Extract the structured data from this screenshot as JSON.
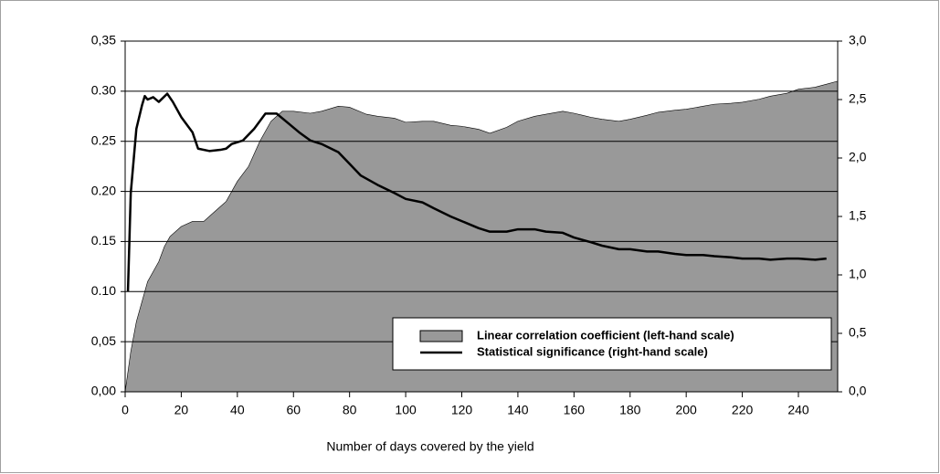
{
  "chart_data": {
    "type": "area-line",
    "x_label": "Number of days covered by the yield",
    "xlim": [
      0,
      254
    ],
    "xticks": [
      0,
      20,
      40,
      60,
      80,
      100,
      120,
      140,
      160,
      180,
      200,
      220,
      240
    ],
    "ylim": [
      0,
      0.35
    ],
    "yticks": [
      {
        "value": 0,
        "label": "0,00"
      },
      {
        "value": 0.05,
        "label": "0,05"
      },
      {
        "value": 0.1,
        "label": "0.10"
      },
      {
        "value": 0.15,
        "label": "0.15"
      },
      {
        "value": 0.2,
        "label": "0.20"
      },
      {
        "value": 0.25,
        "label": "0.25"
      },
      {
        "value": 0.3,
        "label": "0.30"
      },
      {
        "value": 0.35,
        "label": "0,35"
      }
    ],
    "y2lim": [
      0,
      3.0
    ],
    "y2ticks": [
      {
        "value": 0,
        "label": "0,0"
      },
      {
        "value": 0.5,
        "label": "0,5"
      },
      {
        "value": 1,
        "label": "1,0"
      },
      {
        "value": 1.5,
        "label": "1,5"
      },
      {
        "value": 2,
        "label": "2,0"
      },
      {
        "value": 2.5,
        "label": "2,5"
      },
      {
        "value": 3,
        "label": "3,0"
      }
    ],
    "grid": true,
    "legend": "lower right",
    "series": [
      {
        "name": "Linear correlation coefficient (left-hand scale)",
        "kind": "area",
        "color": "#999999",
        "x": [
          0,
          2,
          4,
          6,
          8,
          10,
          12,
          14,
          16,
          20,
          24,
          28,
          32,
          36,
          40,
          44,
          48,
          52,
          56,
          60,
          66,
          70,
          76,
          80,
          86,
          90,
          96,
          100,
          106,
          110,
          116,
          120,
          126,
          130,
          136,
          140,
          146,
          150,
          156,
          160,
          166,
          170,
          176,
          180,
          186,
          190,
          196,
          200,
          206,
          210,
          216,
          220,
          226,
          230,
          236,
          240,
          246,
          250,
          254
        ],
        "values": [
          0,
          0.04,
          0.07,
          0.09,
          0.11,
          0.12,
          0.13,
          0.145,
          0.155,
          0.165,
          0.17,
          0.17,
          0.18,
          0.19,
          0.21,
          0.225,
          0.25,
          0.27,
          0.28,
          0.28,
          0.278,
          0.28,
          0.285,
          0.284,
          0.277,
          0.275,
          0.273,
          0.269,
          0.27,
          0.27,
          0.266,
          0.265,
          0.262,
          0.258,
          0.264,
          0.27,
          0.275,
          0.277,
          0.28,
          0.278,
          0.274,
          0.272,
          0.27,
          0.272,
          0.276,
          0.279,
          0.281,
          0.282,
          0.285,
          0.287,
          0.288,
          0.289,
          0.292,
          0.295,
          0.298,
          0.302,
          0.304,
          0.307,
          0.31
        ]
      },
      {
        "name": "Statistical significance (right-hand scale)",
        "kind": "line",
        "axis": "y2",
        "color": "#000000",
        "x": [
          1,
          2,
          4,
          6,
          7,
          8,
          10,
          12,
          15,
          17,
          20,
          24,
          26,
          30,
          34,
          36,
          38,
          42,
          46,
          50,
          54,
          58,
          62,
          66,
          70,
          76,
          80,
          84,
          90,
          96,
          100,
          106,
          110,
          116,
          120,
          126,
          130,
          136,
          140,
          146,
          150,
          156,
          160,
          166,
          170,
          176,
          180,
          186,
          190,
          196,
          200,
          206,
          210,
          216,
          220,
          226,
          230,
          236,
          240,
          246,
          250
        ],
        "values": [
          0.86,
          1.7,
          2.25,
          2.45,
          2.53,
          2.5,
          2.52,
          2.48,
          2.55,
          2.48,
          2.35,
          2.22,
          2.08,
          2.06,
          2.07,
          2.08,
          2.12,
          2.15,
          2.25,
          2.38,
          2.38,
          2.3,
          2.22,
          2.15,
          2.12,
          2.05,
          1.95,
          1.85,
          1.77,
          1.7,
          1.65,
          1.62,
          1.57,
          1.5,
          1.46,
          1.4,
          1.37,
          1.37,
          1.39,
          1.39,
          1.37,
          1.36,
          1.32,
          1.28,
          1.25,
          1.22,
          1.22,
          1.2,
          1.2,
          1.18,
          1.17,
          1.17,
          1.16,
          1.15,
          1.14,
          1.14,
          1.13,
          1.14,
          1.14,
          1.13,
          1.14
        ]
      }
    ]
  }
}
